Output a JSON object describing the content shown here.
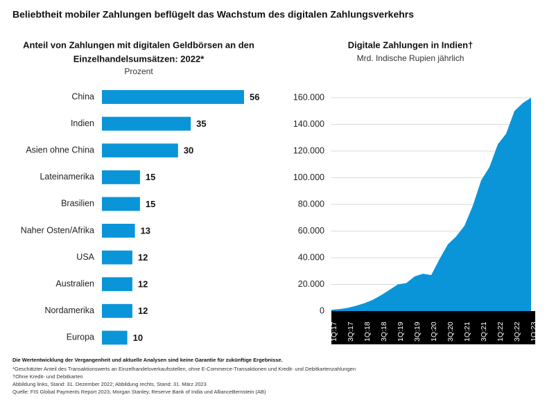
{
  "title": "Beliebtheit mobiler Zahlungen beflügelt das Wachstum des digitalen Zahlungsverkehrs",
  "chart_data": [
    {
      "type": "hbar",
      "title": [
        "Anteil von Zahlungen mit digitalen Geldbörsen an den",
        "Einzelhandelsumsätzen: 2022*"
      ],
      "subtitle": "Prozent",
      "categories": [
        "China",
        "Indien",
        "Asien ohne China",
        "Lateinamerika",
        "Brasilien",
        "Naher Osten/Afrika",
        "USA",
        "Australien",
        "Nordamerika",
        "Europa"
      ],
      "values": [
        56,
        35,
        30,
        15,
        15,
        13,
        12,
        12,
        12,
        10
      ],
      "color": "#0a95d9"
    },
    {
      "type": "area",
      "title": "Digitale Zahlungen in Indien†",
      "subtitle": "Mrd. Indische Rupien jährlich",
      "categories": [
        "1Q:17",
        null,
        "3Q:17",
        null,
        "1Q:18",
        null,
        "3Q:18",
        null,
        "1Q:19",
        null,
        "3Q:19",
        null,
        "1Q:20",
        null,
        "3Q:20",
        null,
        "1Q:21",
        null,
        "3Q:21",
        null,
        "1Q:22",
        null,
        "3Q:22",
        null,
        "1Q:23"
      ],
      "values": [
        1000,
        1500,
        2500,
        4000,
        6000,
        8500,
        12000,
        16000,
        20000,
        21000,
        26000,
        28000,
        27000,
        39000,
        50000,
        56000,
        64000,
        79000,
        98000,
        108000,
        125000,
        133000,
        150000,
        156000,
        160000
      ],
      "color": "#0a95d9",
      "ylim": [
        0,
        166000
      ],
      "yticks": [
        0,
        {
          "value": 20000,
          "label": "20.000"
        },
        {
          "value": 40000,
          "label": "40.000"
        },
        {
          "value": 60000,
          "label": "60.000"
        },
        {
          "value": 80000,
          "label": "80.000"
        },
        {
          "value": 100000,
          "label": "100.000"
        },
        {
          "value": 120000,
          "label": "120.000"
        },
        {
          "value": 140000,
          "label": "140.000"
        },
        {
          "value": 160000,
          "label": "160.000"
        }
      ]
    }
  ],
  "footnotes": [
    "Die Wertentwicklung der Vergangenheit und aktuelle Analysen sind keine Garantie für zukünftige Ergebnisse.",
    "*Geschätzter Anteil des Transaktionswerts an Einzelhandelsverkaufsstellen, ohne E-Commerce-Transaktionen und Kredit- und Debitkartenzahlungen",
    "†Ohne Kredit- und Debitkarten",
    "Abbildung links, Stand: 31. Dezember 2022; Abbildung rechts, Stand: 31. März 2023",
    "Quelle: FIS Global Payments Report 2023, Morgan Stanley, Reserve Bank of India und AllianceBernstein (AB)"
  ]
}
